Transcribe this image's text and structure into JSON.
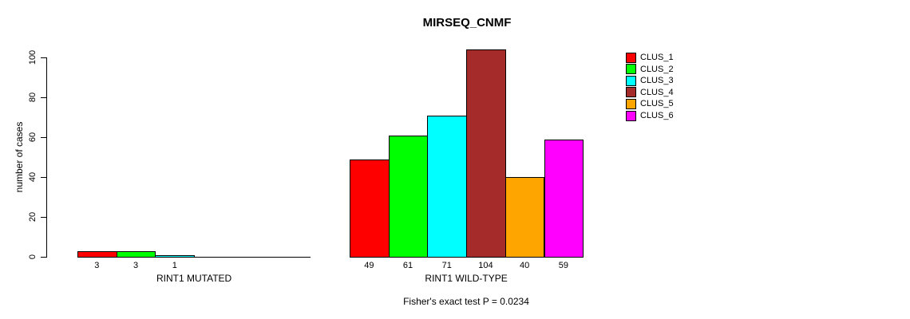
{
  "page": {
    "background": "#FFFFFF",
    "text_color": "#000000"
  },
  "chart_data": {
    "type": "bar",
    "title": "MIRSEQ_CNMF",
    "ylabel": "number of cases",
    "ylim": [
      0,
      100
    ],
    "yticks": [
      0,
      20,
      40,
      60,
      80,
      100
    ],
    "grid": false,
    "legend_position": "right",
    "legend": [
      {
        "name": "CLUS_1",
        "color": "#FF0000"
      },
      {
        "name": "CLUS_2",
        "color": "#00FF00"
      },
      {
        "name": "CLUS_3",
        "color": "#00FFFF"
      },
      {
        "name": "CLUS_4",
        "color": "#A52A2A"
      },
      {
        "name": "CLUS_5",
        "color": "#FFA500"
      },
      {
        "name": "CLUS_6",
        "color": "#FF00FF"
      }
    ],
    "groups": [
      {
        "label": "RINT1 MUTATED",
        "categories": [
          "CLUS_1",
          "CLUS_2",
          "CLUS_3",
          "CLUS_4",
          "CLUS_5",
          "CLUS_6"
        ],
        "values": [
          3,
          3,
          1,
          0,
          0,
          0
        ]
      },
      {
        "label": "RINT1 WILD-TYPE",
        "categories": [
          "CLUS_1",
          "CLUS_2",
          "CLUS_3",
          "CLUS_4",
          "CLUS_5",
          "CLUS_6"
        ],
        "values": [
          49,
          61,
          71,
          104,
          40,
          59
        ]
      }
    ],
    "annotation": "Fisher's exact test P = 0.0234"
  }
}
